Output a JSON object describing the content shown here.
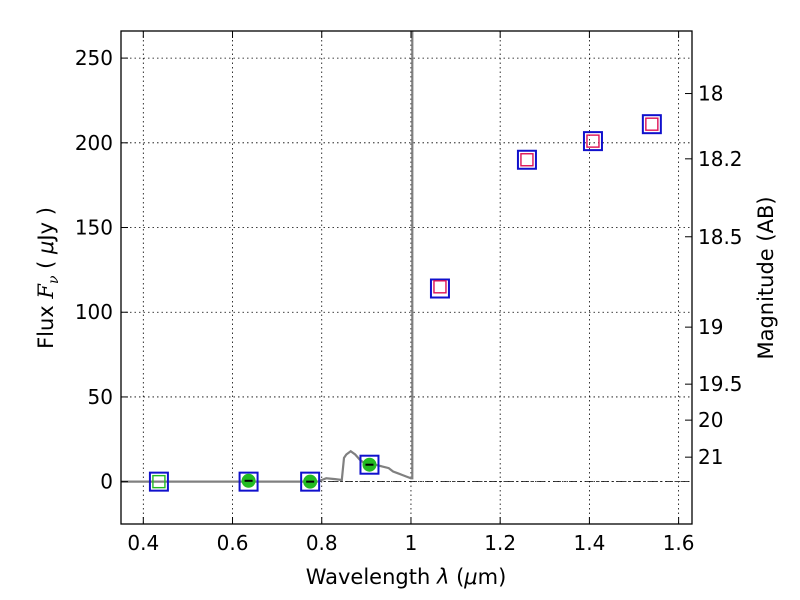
{
  "chart_data": {
    "type": "scatter",
    "xlabel": "Wavelength  λ (μm)",
    "ylabel": "Flux  F_ν  ( μJy )",
    "ylabel_parts": {
      "a": "Flux  ",
      "b": "F",
      "c": "ν",
      "d": "  (  ",
      "e": "μ",
      "f": "Jy )"
    },
    "xlabel_parts": {
      "a": "Wavelength  ",
      "b": "λ",
      "c": " (",
      "d": "μ",
      "e": "m)"
    },
    "y2label": "Magnitude (AB)",
    "xlim": [
      0.35,
      1.63
    ],
    "ylim": [
      -25,
      266
    ],
    "grid": true,
    "x_ticks": [
      {
        "v": 0.4,
        "label": "0.4"
      },
      {
        "v": 0.6,
        "label": "0.6"
      },
      {
        "v": 0.8,
        "label": "0.8"
      },
      {
        "v": 1.0,
        "label": "1"
      },
      {
        "v": 1.2,
        "label": "1.2"
      },
      {
        "v": 1.4,
        "label": "1.4"
      },
      {
        "v": 1.6,
        "label": "1.6"
      }
    ],
    "y_ticks": [
      {
        "v": 0,
        "label": "0"
      },
      {
        "v": 50,
        "label": "50"
      },
      {
        "v": 100,
        "label": "100"
      },
      {
        "v": 150,
        "label": "150"
      },
      {
        "v": 200,
        "label": "200"
      },
      {
        "v": 250,
        "label": "250"
      }
    ],
    "y2_ticks": [
      {
        "mag": 18,
        "label": "18"
      },
      {
        "mag": 18.2,
        "label": "18.2"
      },
      {
        "mag": 18.5,
        "label": "18.5"
      },
      {
        "mag": 19,
        "label": "19"
      },
      {
        "mag": 19.5,
        "label": "19.5"
      },
      {
        "mag": 20,
        "label": "20"
      },
      {
        "mag": 21,
        "label": "21"
      }
    ],
    "series": [
      {
        "kind": "line",
        "color": "#808080",
        "x": [
          0.35,
          0.6,
          0.79,
          0.8,
          0.81,
          0.83,
          0.845,
          0.85,
          0.855,
          0.865,
          0.875,
          0.885,
          0.895,
          0.905,
          0.92,
          0.935,
          0.95,
          0.96,
          0.97,
          0.98,
          0.99,
          1.0,
          1.003,
          1.003
        ],
        "y": [
          0,
          0,
          0,
          1,
          2,
          1.5,
          1,
          14,
          16,
          18,
          16,
          13,
          11,
          10,
          10,
          9,
          8,
          6,
          5,
          4,
          3,
          2,
          2,
          266
        ]
      },
      {
        "kind": "model-squares",
        "color": "#1010cc",
        "x": [
          0.435,
          0.636,
          0.774,
          0.907,
          1.065,
          1.26,
          1.408,
          1.54
        ],
        "y": [
          0,
          0,
          0,
          10,
          114,
          190,
          201,
          211
        ]
      },
      {
        "kind": "observed-flux",
        "color": "#dd1155",
        "x": [
          1.065,
          1.26,
          1.408,
          1.54
        ],
        "y": [
          115,
          190,
          201,
          211
        ]
      },
      {
        "kind": "observed-upper",
        "color": "#22bb22",
        "x": [
          0.435
        ],
        "y": [
          0
        ]
      },
      {
        "kind": "observed-detection",
        "color": "#22bb22",
        "x": [
          0.636,
          0.774,
          0.907
        ],
        "y": [
          0.5,
          0,
          10
        ]
      }
    ]
  }
}
